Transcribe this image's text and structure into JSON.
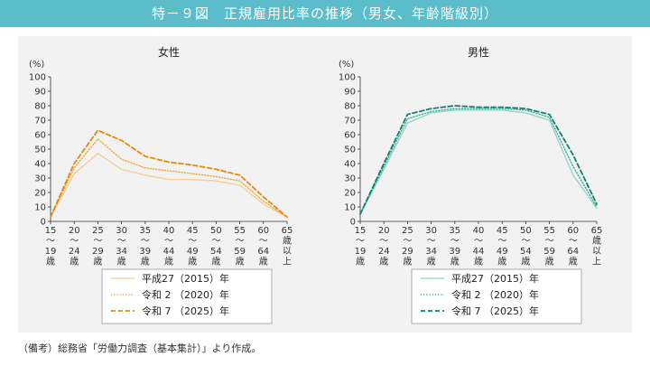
{
  "header": {
    "title": "特－９図　正規雇用比率の推移（男女、年齢階級別）"
  },
  "footer": {
    "note": "（備考）総務省「労働力調査（基本集計）」より作成。"
  },
  "colors": {
    "header_bg": "#5bbdc9",
    "female_2015": "#f5cc93",
    "female_2020": "#f0a940",
    "female_2025": "#e8880a",
    "male_2015": "#8fd3c6",
    "male_2020": "#3fae97",
    "male_2025": "#11806d"
  },
  "chart_data": [
    {
      "type": "line",
      "title": "女性",
      "ylabel": "(%)",
      "ylim": [
        0,
        100
      ],
      "yticks": [
        "0",
        "10",
        "20",
        "30",
        "40",
        "50",
        "60",
        "70",
        "80",
        "90",
        "100"
      ],
      "categories": [
        [
          "15",
          "～",
          "19",
          "歳"
        ],
        [
          "20",
          "～",
          "24",
          "歳"
        ],
        [
          "25",
          "～",
          "29",
          "歳"
        ],
        [
          "30",
          "～",
          "34",
          "歳"
        ],
        [
          "35",
          "～",
          "39",
          "歳"
        ],
        [
          "40",
          "～",
          "44",
          "歳"
        ],
        [
          "45",
          "～",
          "49",
          "歳"
        ],
        [
          "50",
          "～",
          "54",
          "歳"
        ],
        [
          "55",
          "～",
          "59",
          "歳"
        ],
        [
          "60",
          "～",
          "64",
          "歳"
        ],
        [
          "65",
          "歳",
          "以",
          "上"
        ]
      ],
      "series": [
        {
          "name": "平成27（2015）年",
          "style": "solid",
          "values": [
            3,
            33,
            47,
            36,
            32,
            29,
            29,
            28,
            25,
            12,
            3
          ]
        },
        {
          "name": "令和 2 （2020）年",
          "style": "dotted",
          "values": [
            3,
            37,
            57,
            43,
            37,
            35,
            33,
            31,
            28,
            14,
            3
          ]
        },
        {
          "name": "令和 7 （2025）年",
          "style": "dashed",
          "values": [
            3,
            40,
            63,
            56,
            45,
            41,
            39,
            36,
            32,
            17,
            3
          ]
        }
      ]
    },
    {
      "type": "line",
      "title": "男性",
      "ylabel": "(%)",
      "ylim": [
        0,
        100
      ],
      "yticks": [
        "0",
        "10",
        "20",
        "30",
        "40",
        "50",
        "60",
        "70",
        "80",
        "90",
        "100"
      ],
      "categories": [
        [
          "15",
          "～",
          "19",
          "歳"
        ],
        [
          "20",
          "～",
          "24",
          "歳"
        ],
        [
          "25",
          "～",
          "29",
          "歳"
        ],
        [
          "30",
          "～",
          "34",
          "歳"
        ],
        [
          "35",
          "～",
          "39",
          "歳"
        ],
        [
          "40",
          "～",
          "44",
          "歳"
        ],
        [
          "45",
          "～",
          "49",
          "歳"
        ],
        [
          "50",
          "～",
          "54",
          "歳"
        ],
        [
          "55",
          "～",
          "59",
          "歳"
        ],
        [
          "60",
          "～",
          "64",
          "歳"
        ],
        [
          "65",
          "歳",
          "以",
          "上"
        ]
      ],
      "series": [
        {
          "name": "平成27（2015）年",
          "style": "solid",
          "values": [
            5,
            36,
            68,
            75,
            77,
            77,
            77,
            75,
            70,
            32,
            9
          ]
        },
        {
          "name": "令和 2 （2020）年",
          "style": "dotted",
          "values": [
            5,
            38,
            71,
            76,
            78,
            78,
            78,
            77,
            72,
            38,
            10
          ]
        },
        {
          "name": "令和 7 （2025）年",
          "style": "dashed",
          "values": [
            5,
            40,
            74,
            78,
            80,
            79,
            79,
            78,
            74,
            46,
            12
          ]
        }
      ]
    }
  ]
}
